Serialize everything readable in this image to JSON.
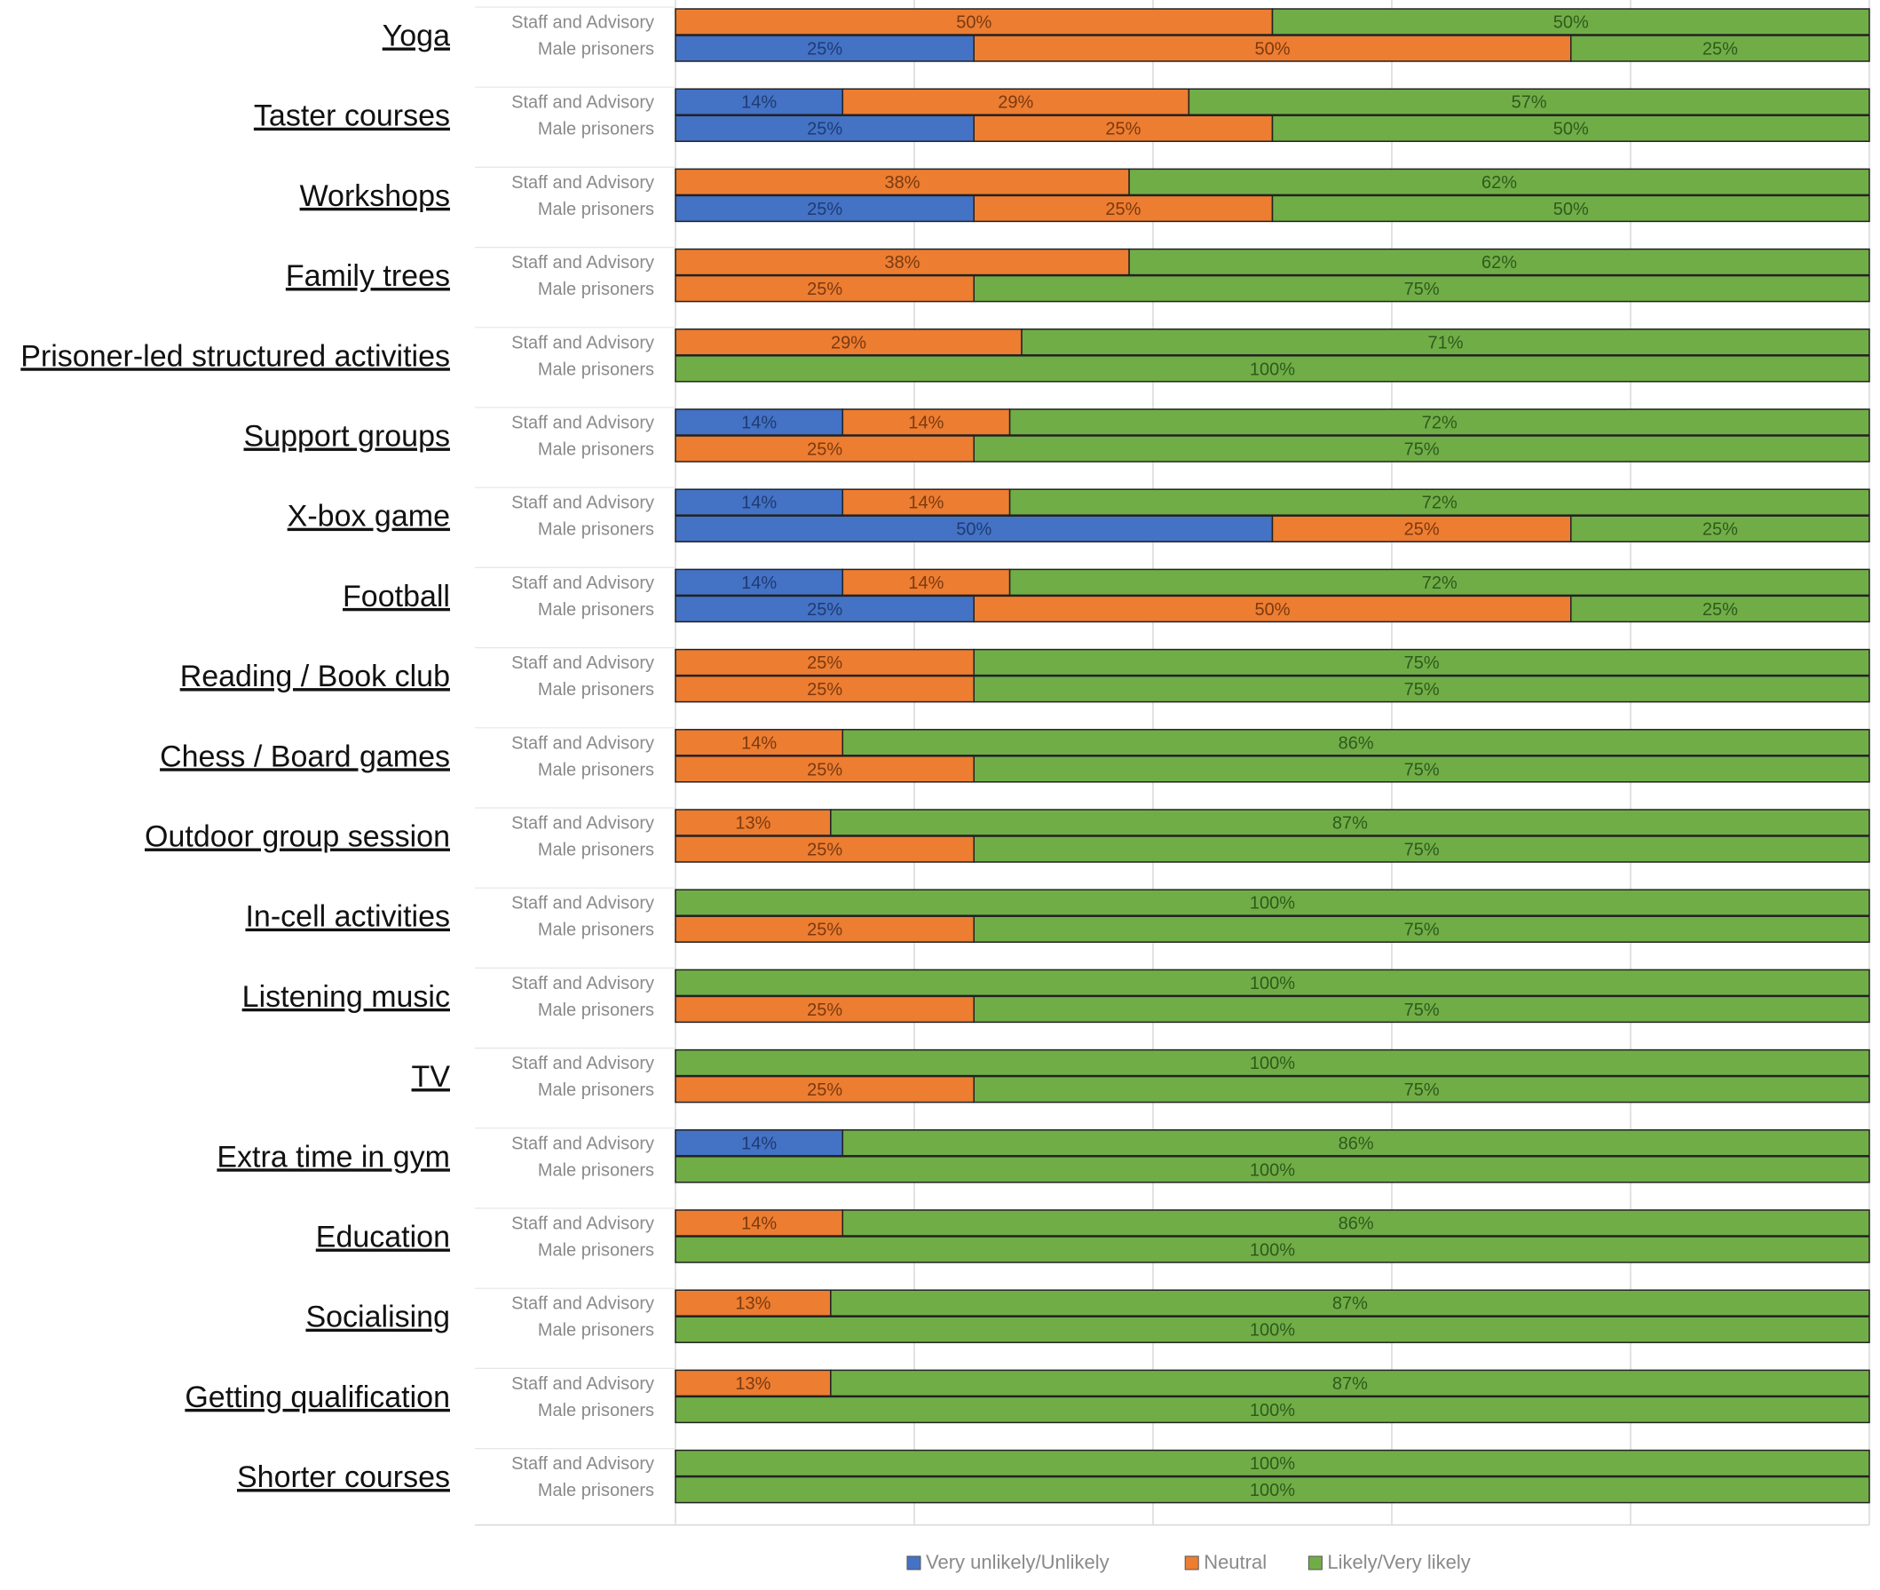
{
  "chart_data": {
    "type": "bar",
    "stacked": true,
    "percent": true,
    "orientation": "horizontal",
    "groups": [
      "Staff and Advisory",
      "Male prisoners"
    ],
    "legend": {
      "placement": "bottom",
      "entries": [
        {
          "name": "Very unlikely/Unlikely",
          "color": "#4472c4"
        },
        {
          "name": "Neutral",
          "color": "#ed7d31"
        },
        {
          "name": "Likely/Very likely",
          "color": "#70ad47"
        }
      ]
    },
    "grid": true,
    "xlim": [
      0,
      100
    ],
    "categories": [
      {
        "name": "Yoga",
        "staff": [
          0,
          50,
          50
        ],
        "male": [
          25,
          50,
          25
        ]
      },
      {
        "name": "Taster courses",
        "staff": [
          14,
          29,
          57
        ],
        "male": [
          25,
          25,
          50
        ]
      },
      {
        "name": "Workshops",
        "staff": [
          0,
          38,
          62
        ],
        "male": [
          25,
          25,
          50
        ]
      },
      {
        "name": "Family trees",
        "staff": [
          0,
          38,
          62
        ],
        "male": [
          0,
          25,
          75
        ]
      },
      {
        "name": "Prisoner-led structured activities",
        "staff": [
          0,
          29,
          71
        ],
        "male": [
          0,
          0,
          100
        ]
      },
      {
        "name": "Support groups",
        "staff": [
          14,
          14,
          72
        ],
        "male": [
          0,
          25,
          75
        ]
      },
      {
        "name": "X-box game",
        "staff": [
          14,
          14,
          72
        ],
        "male": [
          50,
          25,
          25
        ]
      },
      {
        "name": "Football",
        "staff": [
          14,
          14,
          72
        ],
        "male": [
          25,
          50,
          25
        ]
      },
      {
        "name": "Reading / Book club",
        "staff": [
          0,
          25,
          75
        ],
        "male": [
          0,
          25,
          75
        ]
      },
      {
        "name": "Chess / Board games",
        "staff": [
          0,
          14,
          86
        ],
        "male": [
          0,
          25,
          75
        ]
      },
      {
        "name": "Outdoor group session",
        "staff": [
          0,
          13,
          87
        ],
        "male": [
          0,
          25,
          75
        ]
      },
      {
        "name": "In-cell activities",
        "staff": [
          0,
          0,
          100
        ],
        "male": [
          0,
          25,
          75
        ]
      },
      {
        "name": "Listening music",
        "staff": [
          0,
          0,
          100
        ],
        "male": [
          0,
          25,
          75
        ]
      },
      {
        "name": "TV",
        "staff": [
          0,
          0,
          100
        ],
        "male": [
          0,
          25,
          75
        ]
      },
      {
        "name": "Extra time in gym",
        "staff": [
          14,
          0,
          86
        ],
        "male": [
          0,
          0,
          100
        ]
      },
      {
        "name": "Education",
        "staff": [
          0,
          14,
          86
        ],
        "male": [
          0,
          0,
          100
        ]
      },
      {
        "name": "Socialising",
        "staff": [
          0,
          13,
          87
        ],
        "male": [
          0,
          0,
          100
        ]
      },
      {
        "name": "Getting qualification",
        "staff": [
          0,
          13,
          87
        ],
        "male": [
          0,
          0,
          100
        ]
      },
      {
        "name": "Shorter courses",
        "staff": [
          0,
          0,
          100
        ],
        "male": [
          0,
          0,
          100
        ]
      }
    ]
  }
}
